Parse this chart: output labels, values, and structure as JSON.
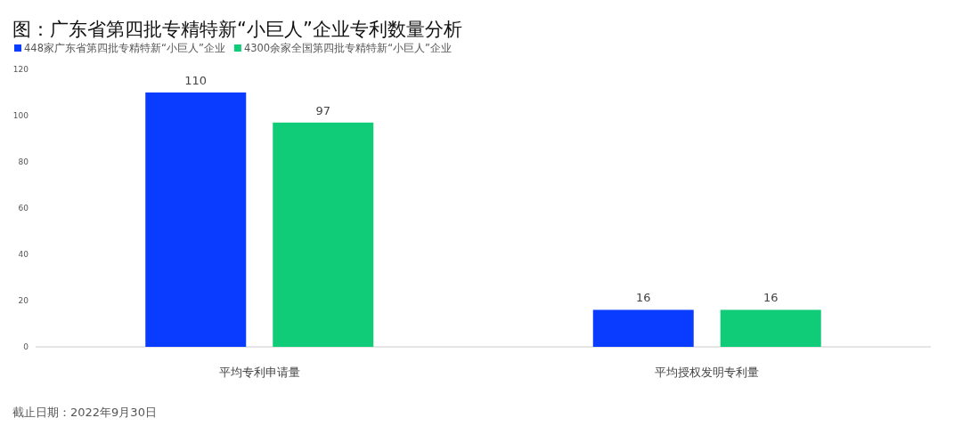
{
  "chart_data": {
    "type": "bar",
    "title": "图：广东省第四批专精特新“小巨人”企业专利数量分析",
    "categories": [
      "平均专利申请量",
      "平均授权发明专利量"
    ],
    "series": [
      {
        "name": "448家广东省第四批专精特新“小巨人”企业",
        "color": "#0a3cff",
        "values": [
          110,
          16
        ]
      },
      {
        "name": "4300余家全国第四批专精特新“小巨人”企业",
        "color": "#10cc78",
        "values": [
          97,
          16
        ]
      }
    ],
    "ylim": [
      0,
      120
    ],
    "yticks": [
      0,
      20,
      40,
      60,
      80,
      100,
      120
    ],
    "data_labels": true,
    "legend": "top left",
    "grid": false,
    "annotations": [
      "截止日期：2022年9月30日"
    ]
  }
}
